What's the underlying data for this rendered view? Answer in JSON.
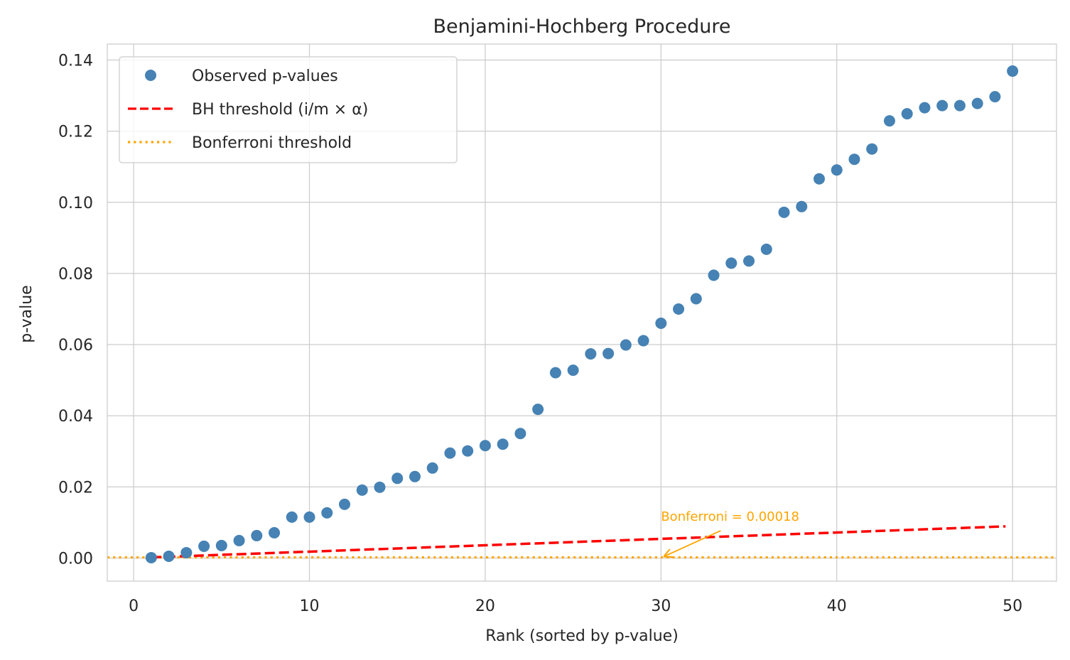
{
  "chart_data": {
    "type": "scatter",
    "title": "Benjamini-Hochberg Procedure",
    "xlabel": "Rank (sorted by p-value)",
    "ylabel": "p-value",
    "xlim": [
      -1.5,
      52.5
    ],
    "ylim": [
      -0.0065,
      0.1445
    ],
    "xticks": [
      0,
      10,
      20,
      30,
      40,
      50
    ],
    "xtick_labels": [
      "0",
      "10",
      "20",
      "30",
      "40",
      "50"
    ],
    "yticks": [
      0.0,
      0.02,
      0.04,
      0.06,
      0.08,
      0.1,
      0.12,
      0.14
    ],
    "ytick_labels": [
      "0.00",
      "0.02",
      "0.04",
      "0.06",
      "0.08",
      "0.10",
      "0.12",
      "0.14"
    ],
    "grid": true,
    "legend_position": "upper-left",
    "series": [
      {
        "name": "Observed p-values",
        "kind": "scatter",
        "color": "#4682b4",
        "x": [
          1,
          2,
          3,
          4,
          5,
          6,
          7,
          8,
          9,
          10,
          11,
          12,
          13,
          14,
          15,
          16,
          17,
          18,
          19,
          20,
          21,
          22,
          23,
          24,
          25,
          26,
          27,
          28,
          29,
          30,
          31,
          32,
          33,
          34,
          35,
          36,
          37,
          38,
          39,
          40,
          41,
          42,
          43,
          44,
          45,
          46,
          47,
          48,
          49,
          50
        ],
        "y": [
          0.0001,
          0.0005,
          0.0015,
          0.0033,
          0.0035,
          0.0049,
          0.0063,
          0.0071,
          0.0115,
          0.0115,
          0.0127,
          0.0151,
          0.0191,
          0.0199,
          0.0224,
          0.0229,
          0.0253,
          0.0295,
          0.0301,
          0.0316,
          0.032,
          0.035,
          0.0418,
          0.0521,
          0.0528,
          0.0574,
          0.0575,
          0.0599,
          0.0611,
          0.066,
          0.07,
          0.0729,
          0.0795,
          0.0829,
          0.0835,
          0.0868,
          0.0972,
          0.0988,
          0.1066,
          0.1091,
          0.1121,
          0.115,
          0.1229,
          0.1249,
          0.1266,
          0.1272,
          0.1272,
          0.1278,
          0.1297,
          0.1369
        ]
      },
      {
        "name": "BH threshold (i/m × α)",
        "kind": "line",
        "style": "dashed",
        "color": "#ff0000",
        "x": [
          1,
          49.6
        ],
        "y": [
          0.00018,
          0.0089
        ]
      },
      {
        "name": "Bonferroni threshold",
        "kind": "hline",
        "style": "dotted",
        "color": "#ffa500",
        "y": 0.00018
      }
    ],
    "annotations": [
      {
        "text": "Bonferroni = 0.00018",
        "color": "#ffa500",
        "text_at": [
          30,
          0.0105
        ],
        "arrow_from": [
          33.4,
          0.0077
        ],
        "arrow_to": [
          30.2,
          0.0005
        ]
      }
    ]
  }
}
